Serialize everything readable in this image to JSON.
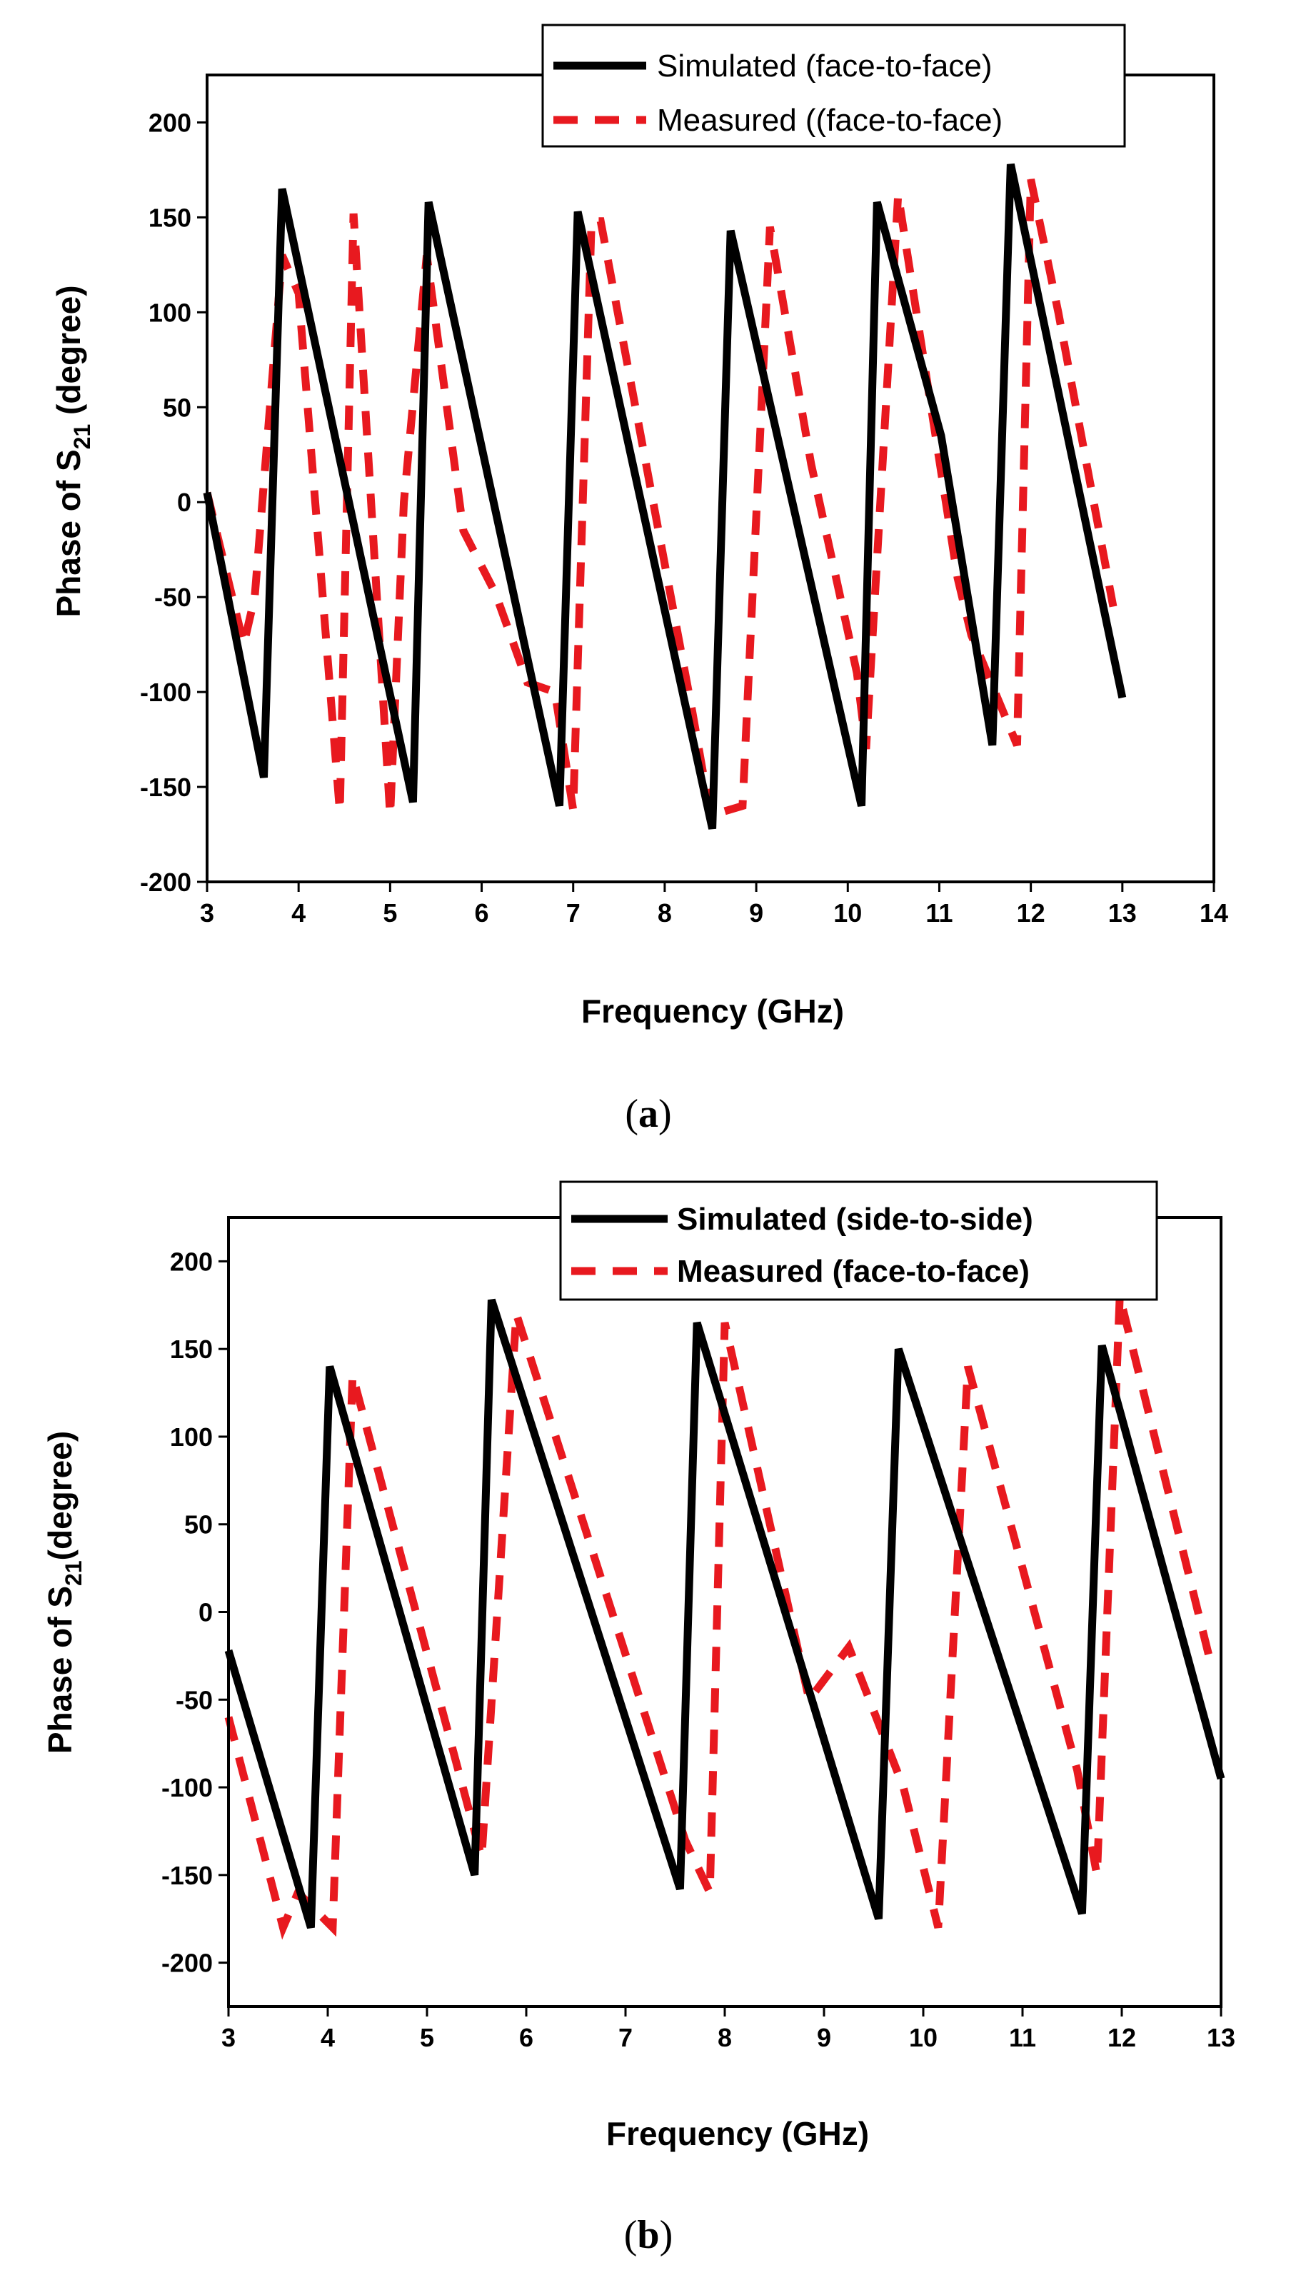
{
  "chart_data": [
    {
      "id": "a",
      "type": "line",
      "caption_letter": "a",
      "xlabel": "Frequency (GHz)",
      "ylabel_prefix": "Phase of S",
      "ylabel_sub": "21",
      "ylabel_suffix": " (degree)",
      "xlim": [
        3,
        14
      ],
      "ylim": [
        -200,
        225
      ],
      "xticks": [
        3,
        4,
        5,
        6,
        7,
        8,
        9,
        10,
        11,
        12,
        13,
        14
      ],
      "yticks": [
        -200,
        -150,
        -100,
        -50,
        0,
        50,
        100,
        150,
        200
      ],
      "series": [
        {
          "name": "Simulated (face-to-face)",
          "style": "solid",
          "color": "#000000",
          "points": [
            [
              3.0,
              5
            ],
            [
              3.62,
              -145
            ],
            [
              3.82,
              165
            ],
            [
              5.25,
              -158
            ],
            [
              5.42,
              158
            ],
            [
              6.85,
              -160
            ],
            [
              7.05,
              153
            ],
            [
              8.52,
              -172
            ],
            [
              8.72,
              143
            ],
            [
              10.15,
              -160
            ],
            [
              10.32,
              158
            ],
            [
              11.02,
              35
            ],
            [
              11.58,
              -128
            ],
            [
              11.78,
              178
            ],
            [
              13.0,
              -103
            ]
          ]
        },
        {
          "name": "Measured ((face-to-face)",
          "style": "dashed",
          "color": "#e8191f",
          "points": [
            [
              3.0,
              5
            ],
            [
              3.4,
              -75
            ],
            [
              3.52,
              -50
            ],
            [
              3.82,
              130
            ],
            [
              4.0,
              110
            ],
            [
              4.45,
              -163
            ],
            [
              4.6,
              152
            ],
            [
              5.0,
              -165
            ],
            [
              5.15,
              0
            ],
            [
              5.4,
              130
            ],
            [
              5.8,
              -15
            ],
            [
              6.15,
              -48
            ],
            [
              6.5,
              -95
            ],
            [
              6.8,
              -100
            ],
            [
              7.0,
              -162
            ],
            [
              7.2,
              148
            ],
            [
              7.3,
              148
            ],
            [
              8.3,
              -110
            ],
            [
              8.5,
              -165
            ],
            [
              8.85,
              -160
            ],
            [
              9.15,
              145
            ],
            [
              9.6,
              20
            ],
            [
              10.1,
              -90
            ],
            [
              10.2,
              -130
            ],
            [
              10.55,
              162
            ],
            [
              11.2,
              -40
            ],
            [
              11.35,
              -70
            ],
            [
              11.85,
              -128
            ],
            [
              12.0,
              170
            ],
            [
              12.3,
              100
            ],
            [
              12.9,
              -55
            ]
          ]
        }
      ]
    },
    {
      "id": "b",
      "type": "line",
      "caption_letter": "b",
      "xlabel": "Frequency (GHz)",
      "ylabel_prefix": "Phase of S",
      "ylabel_sub": "21",
      "ylabel_suffix": "(degree)",
      "xlim": [
        3,
        13
      ],
      "ylim": [
        -225,
        225
      ],
      "xticks": [
        3,
        4,
        5,
        6,
        7,
        8,
        9,
        10,
        11,
        12,
        13
      ],
      "yticks": [
        -200,
        -150,
        -100,
        -50,
        0,
        50,
        100,
        150,
        200
      ],
      "series": [
        {
          "name": "Simulated (side-to-side)",
          "style": "solid",
          "color": "#000000",
          "points": [
            [
              3.0,
              -22
            ],
            [
              3.83,
              -180
            ],
            [
              4.02,
              140
            ],
            [
              5.48,
              -150
            ],
            [
              5.65,
              178
            ],
            [
              7.55,
              -158
            ],
            [
              7.72,
              165
            ],
            [
              9.55,
              -175
            ],
            [
              9.75,
              150
            ],
            [
              11.6,
              -172
            ],
            [
              11.8,
              152
            ],
            [
              13.0,
              -95
            ]
          ]
        },
        {
          "name": "Measured (face-to-face)",
          "style": "dashed",
          "color": "#e8191f",
          "points": [
            [
              3.0,
              -60
            ],
            [
              3.55,
              -180
            ],
            [
              3.7,
              -160
            ],
            [
              4.05,
              -180
            ],
            [
              4.25,
              135
            ],
            [
              5.55,
              -140
            ],
            [
              5.9,
              170
            ],
            [
              7.6,
              -130
            ],
            [
              7.85,
              -160
            ],
            [
              8.0,
              165
            ],
            [
              8.85,
              -50
            ],
            [
              9.25,
              -20
            ],
            [
              9.8,
              -100
            ],
            [
              10.15,
              -180
            ],
            [
              10.45,
              140
            ],
            [
              11.55,
              -90
            ],
            [
              11.75,
              -150
            ],
            [
              11.98,
              180
            ],
            [
              12.9,
              -30
            ]
          ]
        }
      ]
    }
  ]
}
